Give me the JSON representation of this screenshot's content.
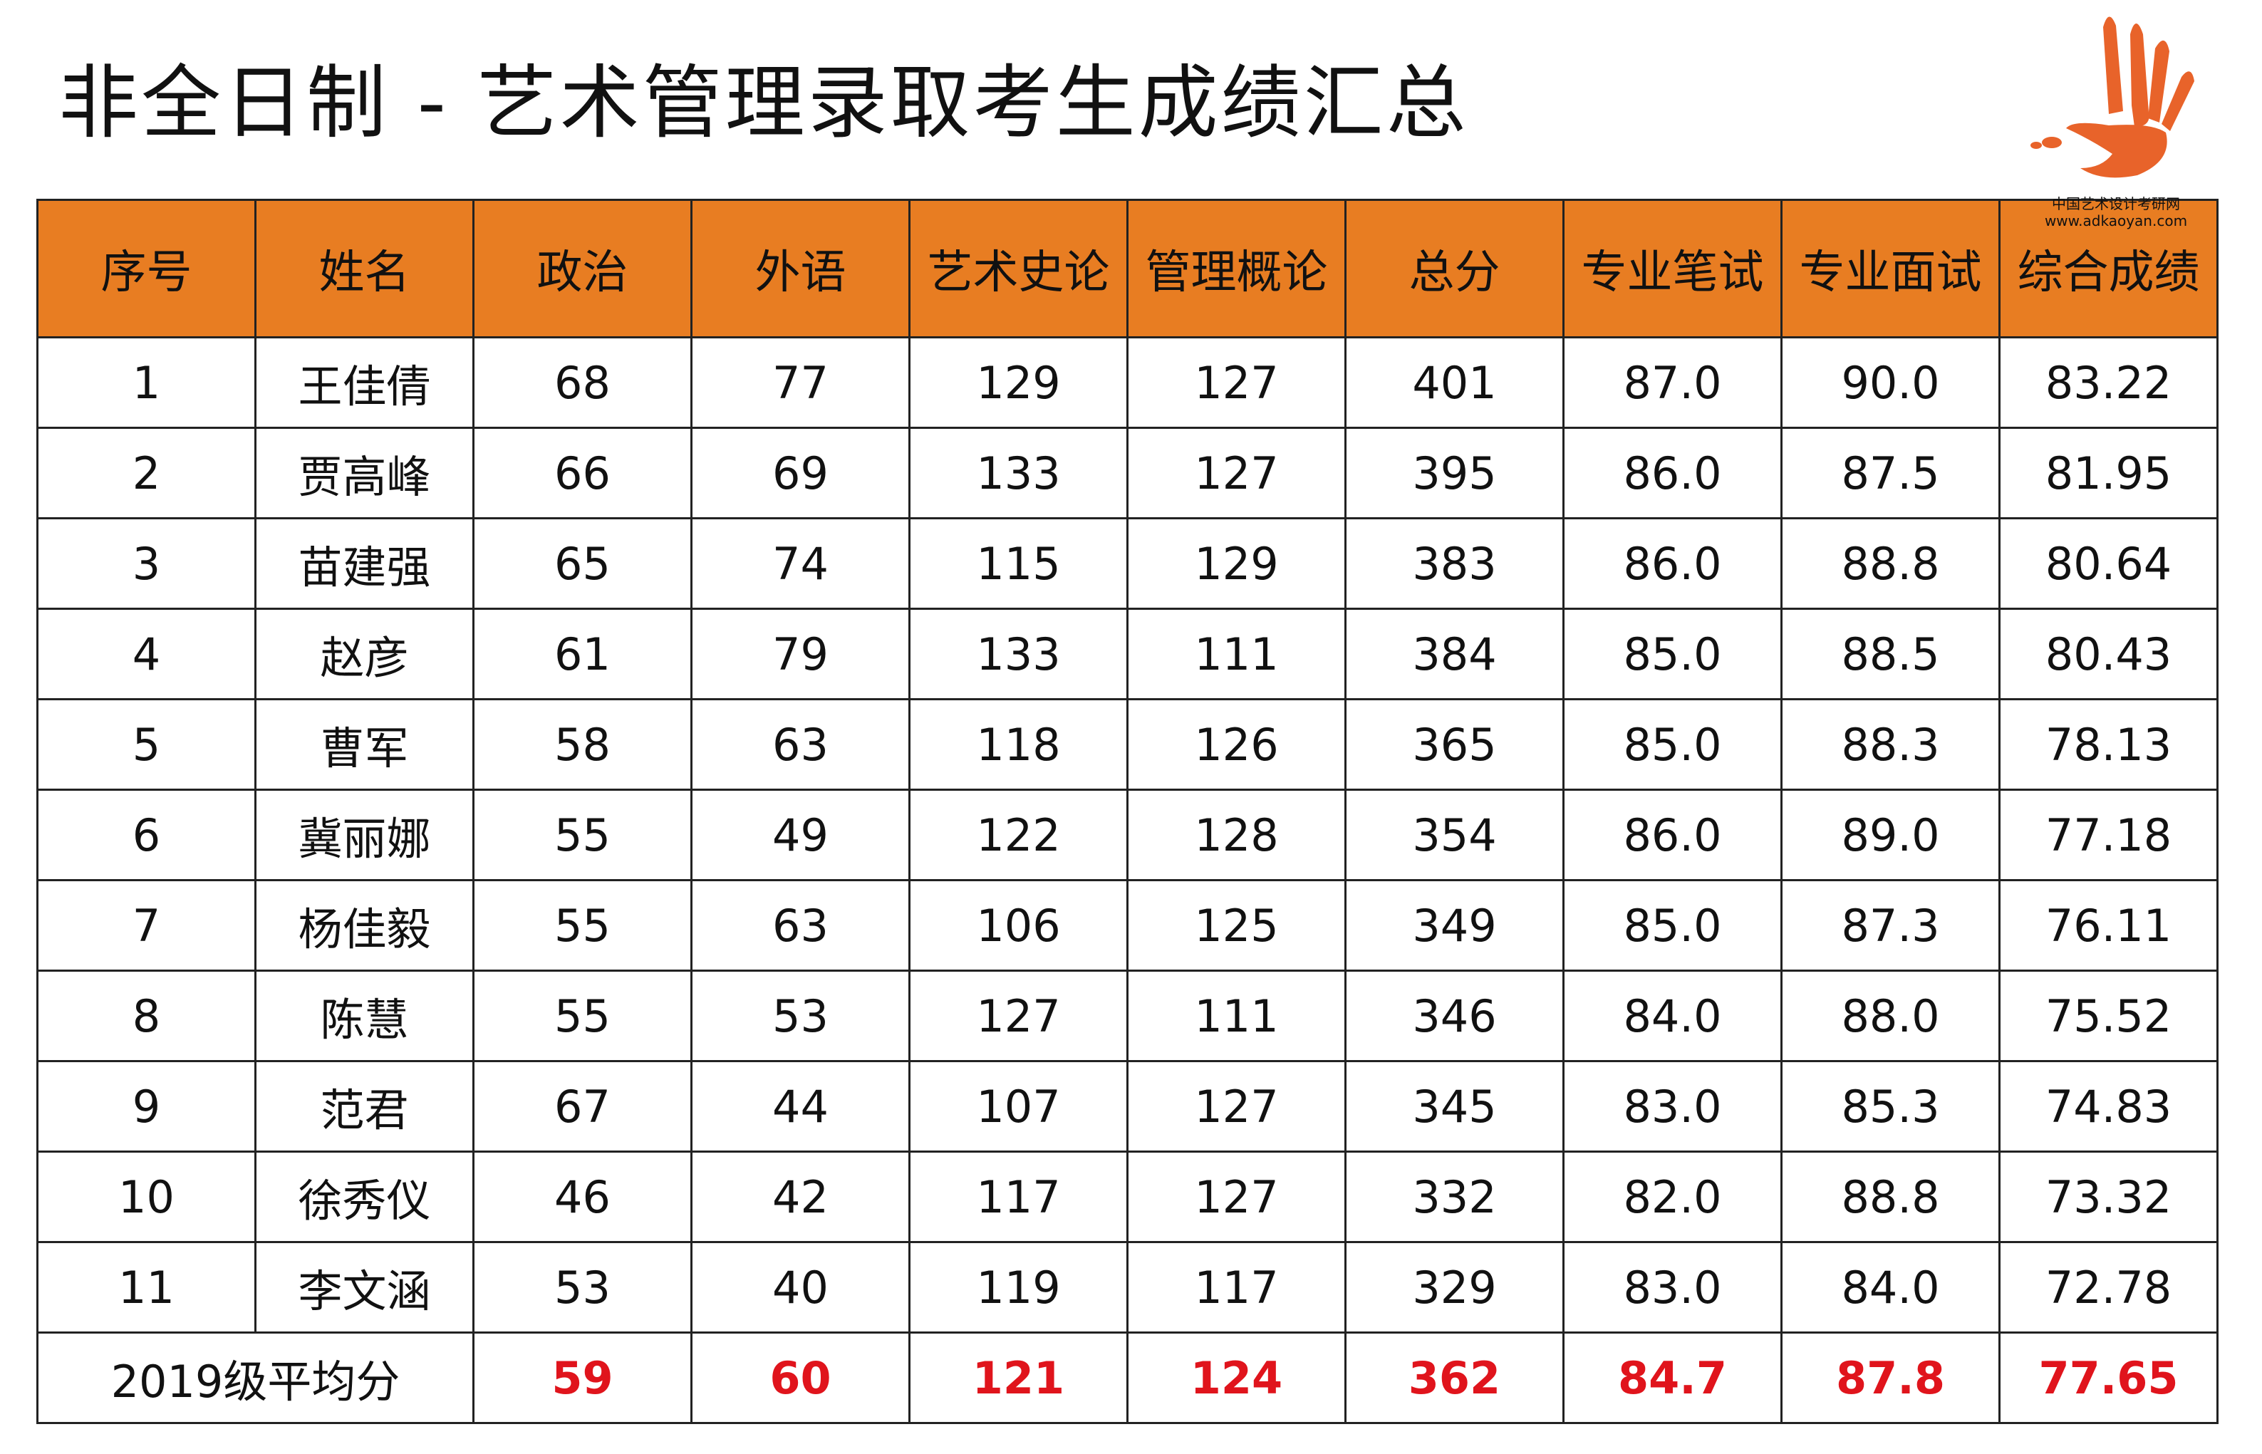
{
  "header": {
    "title": "非全日制 - 艺术管理录取考生成绩汇总",
    "logo_text": "中国艺术设计考研网",
    "logo_url": "www.adkaoyan.com"
  },
  "table": {
    "columns": [
      "序号",
      "姓名",
      "政治",
      "外语",
      "艺术史论",
      "管理概论",
      "总分",
      "专业笔试",
      "专业面试",
      "综合成绩"
    ],
    "rows": [
      [
        "1",
        "王佳倩",
        "68",
        "77",
        "129",
        "127",
        "401",
        "87.0",
        "90.0",
        "83.22"
      ],
      [
        "2",
        "贾高峰",
        "66",
        "69",
        "133",
        "127",
        "395",
        "86.0",
        "87.5",
        "81.95"
      ],
      [
        "3",
        "苗建强",
        "65",
        "74",
        "115",
        "129",
        "383",
        "86.0",
        "88.8",
        "80.64"
      ],
      [
        "4",
        "赵彦",
        "61",
        "79",
        "133",
        "111",
        "384",
        "85.0",
        "88.5",
        "80.43"
      ],
      [
        "5",
        "曹军",
        "58",
        "63",
        "118",
        "126",
        "365",
        "85.0",
        "88.3",
        "78.13"
      ],
      [
        "6",
        "冀丽娜",
        "55",
        "49",
        "122",
        "128",
        "354",
        "86.0",
        "89.0",
        "77.18"
      ],
      [
        "7",
        "杨佳毅",
        "55",
        "63",
        "106",
        "125",
        "349",
        "85.0",
        "87.3",
        "76.11"
      ],
      [
        "8",
        "陈慧",
        "55",
        "53",
        "127",
        "111",
        "346",
        "84.0",
        "88.0",
        "75.52"
      ],
      [
        "9",
        "范君",
        "67",
        "44",
        "107",
        "127",
        "345",
        "83.0",
        "85.3",
        "74.83"
      ],
      [
        "10",
        "徐秀仪",
        "46",
        "42",
        "117",
        "127",
        "332",
        "82.0",
        "88.8",
        "73.32"
      ],
      [
        "11",
        "李文涵",
        "53",
        "40",
        "119",
        "117",
        "329",
        "83.0",
        "84.0",
        "72.78"
      ]
    ],
    "average": {
      "label": "2019级平均分",
      "values": [
        "59",
        "60",
        "121",
        "124",
        "362",
        "84.7",
        "87.8",
        "77.65"
      ]
    }
  }
}
